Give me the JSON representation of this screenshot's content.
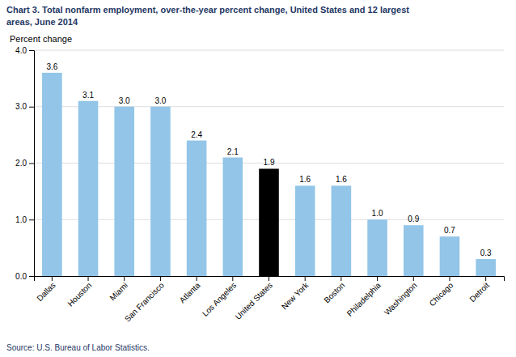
{
  "chart_data": {
    "type": "bar",
    "title": [
      "Chart 3. Total nonfarm employment, over-the-year percent change, United States and 12 largest",
      "areas, June 2014"
    ],
    "ylabel": "Percent change",
    "annotations": [
      "Source: U.S. Bureau of Labor Statistics."
    ],
    "categories": [
      "Dallas",
      "Houston",
      "Miami",
      "San Francisco",
      "Atlanta",
      "Los Angeles",
      "United States",
      "New York",
      "Boston",
      "Philadelphia",
      "Washington",
      "Chicago",
      "Detroit"
    ],
    "values": [
      3.6,
      3.1,
      3.0,
      3.0,
      2.4,
      2.1,
      1.9,
      1.6,
      1.6,
      1.0,
      0.9,
      0.7,
      0.3
    ],
    "value_labels": [
      "3.6",
      "3.1",
      "3.0",
      "3.0",
      "2.4",
      "2.1",
      "1.9",
      "1.6",
      "1.6",
      "1.0",
      "0.9",
      "0.7",
      "0.3"
    ],
    "data_labels": true,
    "colors": [
      "#92c5e8",
      "#92c5e8",
      "#92c5e8",
      "#92c5e8",
      "#92c5e8",
      "#92c5e8",
      "#000000",
      "#92c5e8",
      "#92c5e8",
      "#92c5e8",
      "#92c5e8",
      "#92c5e8",
      "#92c5e8"
    ],
    "ylim": [
      0,
      4.0
    ],
    "yticks": [
      {
        "value": 0,
        "label": "0.0"
      },
      {
        "value": 1,
        "label": "1.0"
      },
      {
        "value": 2,
        "label": "2.0"
      },
      {
        "value": 3,
        "label": "3.0"
      },
      {
        "value": 4,
        "label": "4.0"
      }
    ],
    "grid": true
  }
}
